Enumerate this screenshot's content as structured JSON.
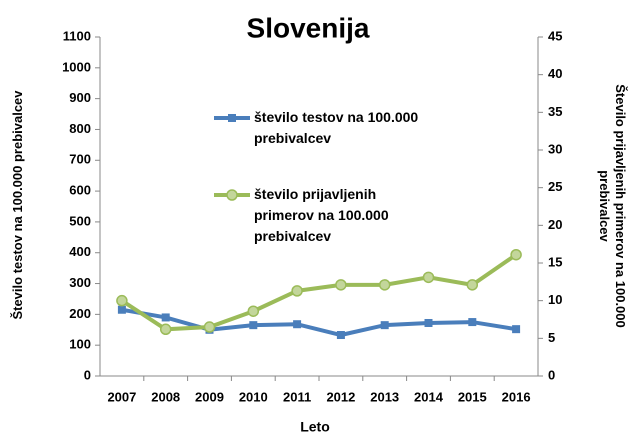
{
  "chart_data": {
    "type": "line",
    "title": "Slovenija",
    "x_label": "Leto",
    "y_label": "Število testov na 100.000 prebivalcev",
    "y2_label": "Število prijavljenih primerov na 100.000 prebivalcev",
    "categories": [
      "2007",
      "2008",
      "2009",
      "2010",
      "2011",
      "2012",
      "2013",
      "2014",
      "2015",
      "2016"
    ],
    "series": [
      {
        "name": "število testov na 100.000 prebivalcev",
        "color": "#4a7ebb",
        "marker": "square",
        "values": [
          215,
          190,
          150,
          165,
          168,
          133,
          165,
          172,
          175,
          152
        ]
      },
      {
        "name": "število prijavljenih primerov na 100.000 prebivalcev",
        "color": "#9bbb59",
        "marker": "circle",
        "axis": "y2",
        "values": [
          10,
          6.2,
          6.5,
          8.6,
          11.3,
          12.1,
          12.1,
          13.1,
          12.1,
          16.1
        ]
      }
    ],
    "ylim": [
      0,
      1100
    ],
    "yticks": [
      0,
      100,
      200,
      300,
      400,
      500,
      600,
      700,
      800,
      900,
      1000,
      1100
    ],
    "y2lim": [
      0,
      45
    ],
    "y2ticks": [
      0,
      5,
      10,
      15,
      20,
      25,
      30,
      35,
      40,
      45
    ],
    "grid": false,
    "legend": "inside-top"
  }
}
